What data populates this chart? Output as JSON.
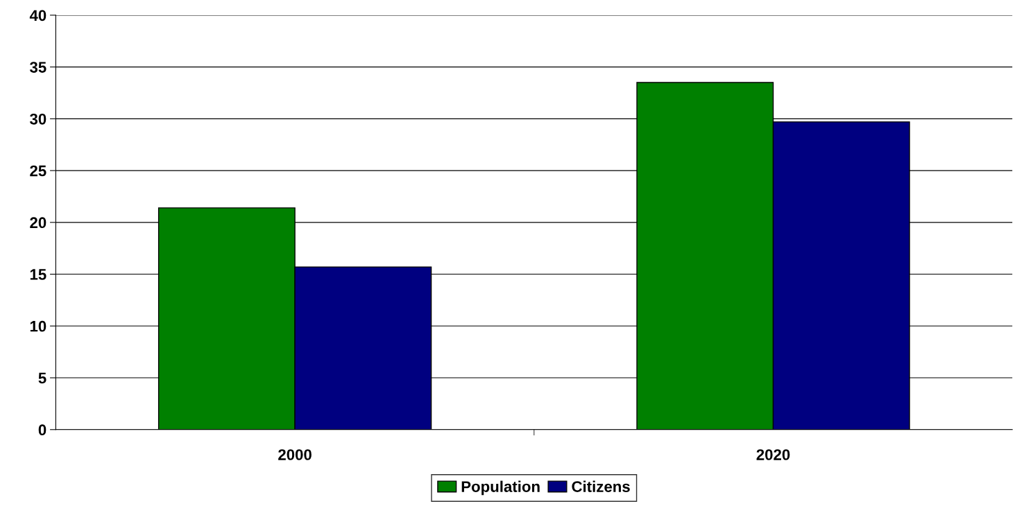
{
  "chart_data": {
    "type": "bar",
    "categories": [
      "2000",
      "2020"
    ],
    "series": [
      {
        "name": "Population",
        "color": "#008000",
        "values": [
          21.4,
          33.5
        ]
      },
      {
        "name": "Citizens",
        "color": "#000080",
        "values": [
          15.7,
          29.7
        ]
      }
    ],
    "ylim": [
      0,
      40
    ],
    "yticks": [
      0,
      5,
      10,
      15,
      20,
      25,
      30,
      35,
      40
    ],
    "grid": "y",
    "legend": "bottom"
  }
}
